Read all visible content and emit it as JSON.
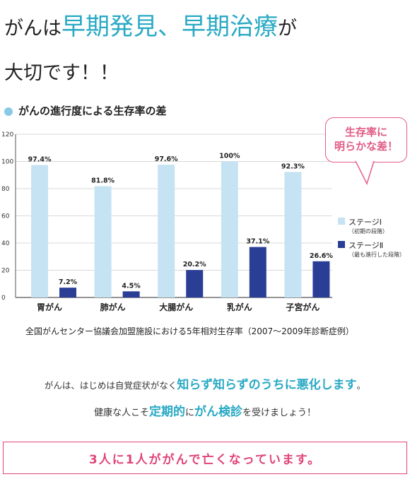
{
  "headline": {
    "part1": "がんは",
    "part2": "早期発見、早期治療",
    "part3": "が",
    "line2": "大切です！！"
  },
  "subheading": "がんの進行度による生存率の差",
  "callout": {
    "line1": "生存率に",
    "line2": "明らかな差！"
  },
  "legend": {
    "stage1": {
      "label": "ステージⅠ",
      "sub": "（初期の段階）"
    },
    "stage2": {
      "label": "ステージⅡ",
      "sub": "（最も進行した段階）"
    }
  },
  "colors": {
    "stage1": "#c6e3f3",
    "stage2": "#2b3e96",
    "accent": "#29a9c4",
    "pink": "#e0457a"
  },
  "chart_data": {
    "type": "bar",
    "categories": [
      "胃がん",
      "肺がん",
      "大腸がん",
      "乳がん",
      "子宮がん"
    ],
    "series": [
      {
        "name": "ステージⅠ",
        "values": [
          97.4,
          81.8,
          97.6,
          100,
          92.3
        ]
      },
      {
        "name": "ステージⅡ",
        "values": [
          7.2,
          4.5,
          20.2,
          37.1,
          26.6
        ]
      }
    ],
    "value_labels": [
      [
        "97.4%",
        "81.8%",
        "97.6%",
        "100%",
        "92.3%"
      ],
      [
        "7.2%",
        "4.5%",
        "20.2%",
        "37.1%",
        "26.6%"
      ]
    ],
    "yticks": [
      0,
      20,
      40,
      60,
      80,
      100,
      120
    ],
    "ylim": [
      0,
      120
    ],
    "grid": true,
    "legend_position": "right"
  },
  "footnote": "全国がんセンター協議会加盟施設における5年相対生存率（2007〜2009年診断症例）",
  "message1": {
    "a": "がんは、はじめは自覚症状がなく",
    "b": "知らず知らずのうちに悪化します",
    "c": "。"
  },
  "message2": {
    "a": "健康な人こそ",
    "b": "定期的",
    "c": "に",
    "d": "がん検診",
    "e": "を受けましょう！"
  },
  "banner": "3人に1人ががんで亡くなっています。"
}
